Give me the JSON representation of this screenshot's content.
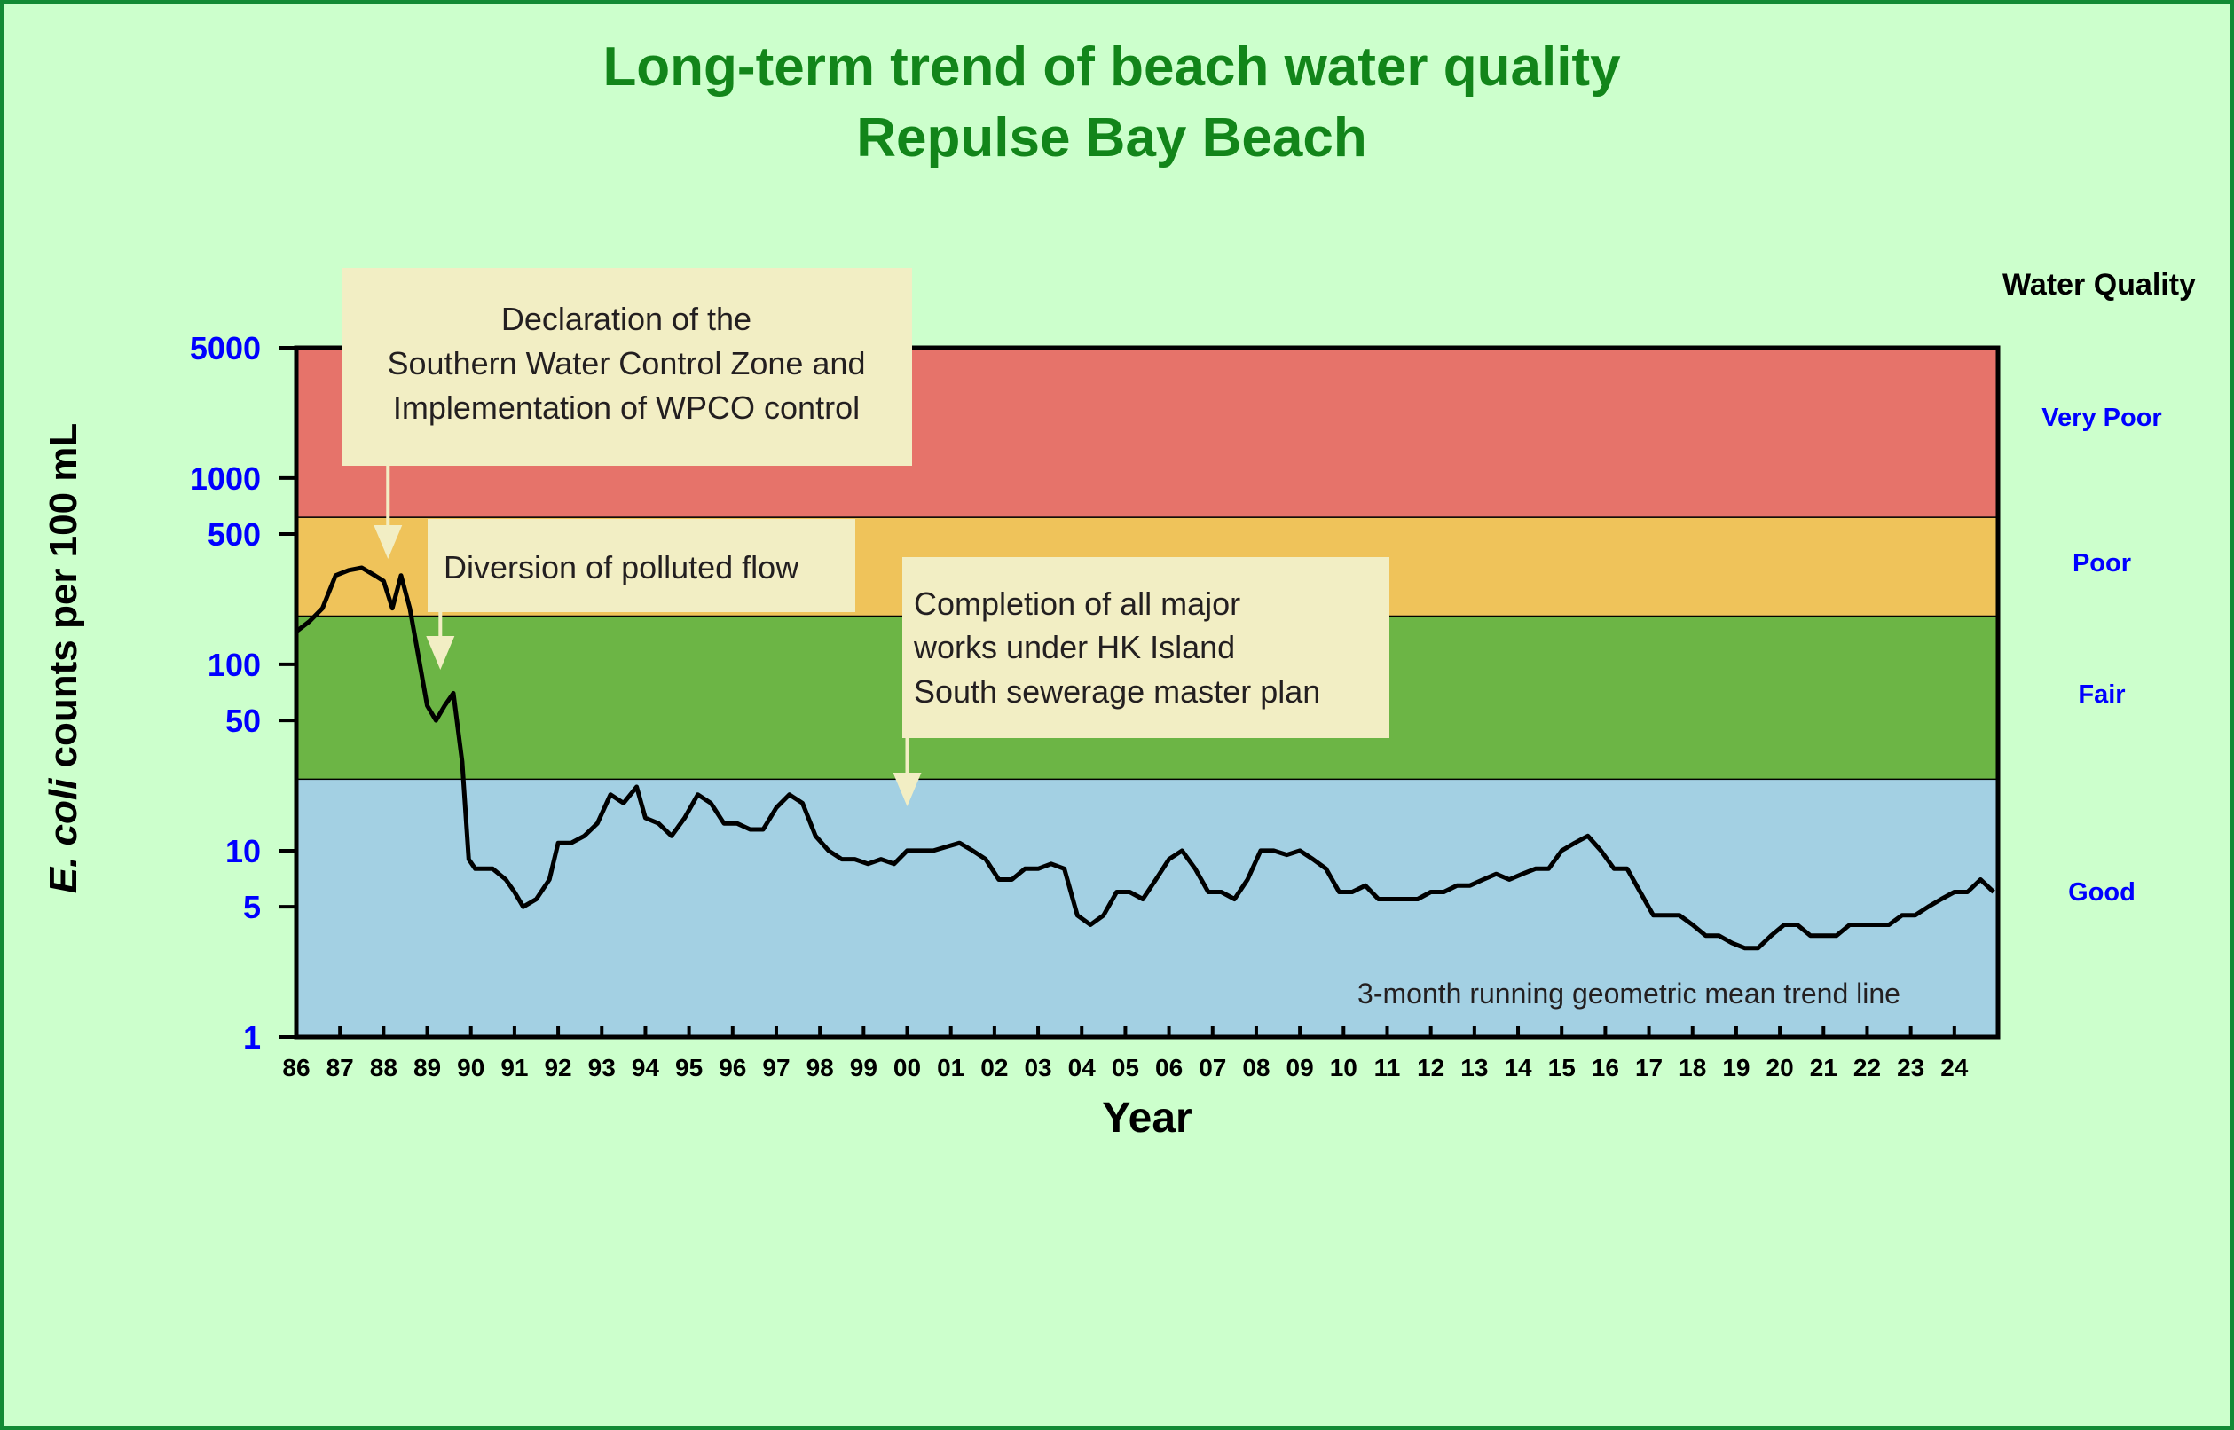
{
  "colors": {
    "background": "#ccffcc",
    "frame": "#138a35",
    "title": "#12851a",
    "very_poor": "#e6736a",
    "poor": "#efc35a",
    "fair": "#6cb545",
    "good": "#a3d0e3",
    "annotation_box": "#f2eec4",
    "line": "#000000"
  },
  "chart_data": {
    "type": "line",
    "title": [
      "Long-term trend of beach water quality",
      "Repulse Bay Beach"
    ],
    "xlabel": "Year",
    "ylabel_italic": "E. coli",
    "ylabel_rest": " counts per 100 mL",
    "xlim": [
      1986,
      2025
    ],
    "ylim": [
      1,
      5000
    ],
    "y_scale": "log",
    "yticks": [
      1,
      5,
      10,
      50,
      100,
      500,
      1000,
      5000
    ],
    "ytick_labels": [
      "1",
      "5",
      "10",
      "50",
      "100",
      "500",
      "1000",
      "5000"
    ],
    "xtick_values": [
      1986,
      1987,
      1988,
      1989,
      1990,
      1991,
      1992,
      1993,
      1994,
      1995,
      1996,
      1997,
      1998,
      1999,
      2000,
      2001,
      2002,
      2003,
      2004,
      2005,
      2006,
      2007,
      2008,
      2009,
      2010,
      2011,
      2012,
      2013,
      2014,
      2015,
      2016,
      2017,
      2018,
      2019,
      2020,
      2021,
      2022,
      2023,
      2024
    ],
    "xtick_labels": [
      "86",
      "87",
      "88",
      "89",
      "90",
      "91",
      "92",
      "93",
      "94",
      "95",
      "96",
      "97",
      "98",
      "99",
      "00",
      "01",
      "02",
      "03",
      "04",
      "05",
      "06",
      "07",
      "08",
      "09",
      "10",
      "11",
      "12",
      "13",
      "14",
      "15",
      "16",
      "17",
      "18",
      "19",
      "20",
      "21",
      "22",
      "23",
      "24"
    ],
    "legend_title": "Water Quality",
    "bands": [
      {
        "label": "Very Poor",
        "from": 610,
        "to": 5000,
        "color": "#e6736a"
      },
      {
        "label": "Poor",
        "from": 180,
        "to": 610,
        "color": "#efc35a"
      },
      {
        "label": "Fair",
        "from": 24,
        "to": 180,
        "color": "#6cb545"
      },
      {
        "label": "Good",
        "from": 1,
        "to": 24,
        "color": "#a3d0e3"
      }
    ],
    "series": [
      {
        "label": "3-month running geometric mean trend line",
        "x": [
          1986.0,
          1986.3,
          1986.6,
          1986.9,
          1987.2,
          1987.5,
          1987.8,
          1988.0,
          1988.2,
          1988.4,
          1988.6,
          1988.8,
          1989.0,
          1989.2,
          1989.4,
          1989.6,
          1989.8,
          1989.95,
          1990.1,
          1990.5,
          1990.8,
          1991.0,
          1991.2,
          1991.5,
          1991.8,
          1992.0,
          1992.3,
          1992.6,
          1992.9,
          1993.2,
          1993.5,
          1993.8,
          1994.0,
          1994.3,
          1994.6,
          1994.9,
          1995.2,
          1995.5,
          1995.8,
          1996.1,
          1996.4,
          1996.7,
          1997.0,
          1997.3,
          1997.6,
          1997.9,
          1998.2,
          1998.5,
          1998.8,
          1999.1,
          1999.4,
          1999.7,
          2000.0,
          2000.3,
          2000.6,
          2000.9,
          2001.2,
          2001.5,
          2001.8,
          2002.1,
          2002.4,
          2002.7,
          2003.0,
          2003.3,
          2003.6,
          2003.9,
          2004.2,
          2004.5,
          2004.8,
          2005.1,
          2005.4,
          2005.7,
          2006.0,
          2006.3,
          2006.6,
          2006.9,
          2007.2,
          2007.5,
          2007.8,
          2008.1,
          2008.4,
          2008.7,
          2009.0,
          2009.3,
          2009.6,
          2009.9,
          2010.2,
          2010.5,
          2010.8,
          2011.1,
          2011.4,
          2011.7,
          2012.0,
          2012.3,
          2012.6,
          2012.9,
          2013.2,
          2013.5,
          2013.8,
          2014.1,
          2014.4,
          2014.7,
          2015.0,
          2015.3,
          2015.6,
          2015.9,
          2016.2,
          2016.5,
          2016.8,
          2017.1,
          2017.4,
          2017.7,
          2018.0,
          2018.3,
          2018.6,
          2018.9,
          2019.2,
          2019.5,
          2019.8,
          2020.1,
          2020.4,
          2020.7,
          2021.0,
          2021.3,
          2021.6,
          2021.9,
          2022.2,
          2022.5,
          2022.8,
          2023.1,
          2023.4,
          2023.7,
          2024.0,
          2024.3,
          2024.6,
          2024.9
        ],
        "y": [
          150,
          170,
          200,
          300,
          320,
          330,
          300,
          280,
          200,
          300,
          200,
          110,
          60,
          50,
          60,
          70,
          30,
          9,
          8,
          8,
          7,
          6,
          5,
          5.5,
          7,
          11,
          11,
          12,
          14,
          20,
          18,
          22,
          15,
          14,
          12,
          15,
          20,
          18,
          14,
          14,
          13,
          13,
          17,
          20,
          18,
          12,
          10,
          9,
          9,
          8.5,
          9,
          8.5,
          10,
          10,
          10,
          10.5,
          11,
          10,
          9,
          7,
          7,
          8,
          8,
          8.5,
          8,
          4.5,
          4,
          4.5,
          6,
          6,
          5.5,
          7,
          9,
          10,
          8,
          6,
          6,
          5.5,
          7,
          10,
          10,
          9.5,
          10,
          9,
          8,
          6,
          6,
          6.5,
          5.5,
          5.5,
          5.5,
          5.5,
          6,
          6,
          6.5,
          6.5,
          7,
          7.5,
          7,
          7.5,
          8,
          8,
          10,
          11,
          12,
          10,
          8,
          8,
          6,
          4.5,
          4.5,
          4.5,
          4,
          3.5,
          3.5,
          3.2,
          3,
          3,
          3.5,
          4,
          4,
          3.5,
          3.5,
          3.5,
          4,
          4,
          4,
          4,
          4.5,
          4.5,
          5,
          5.5,
          6,
          6,
          7,
          6
        ]
      }
    ],
    "annotations": [
      {
        "lines": [
          "Declaration of the",
          "Southern Water Control Zone and",
          "Implementation of WPCO control"
        ],
        "x": 1988.1
      },
      {
        "lines": [
          "Diversion of polluted flow"
        ],
        "x": 1989.3
      },
      {
        "lines": [
          "Completion of all major",
          "works under HK Island",
          "South sewerage master plan"
        ],
        "x": 2000.0
      }
    ],
    "grid": false
  }
}
